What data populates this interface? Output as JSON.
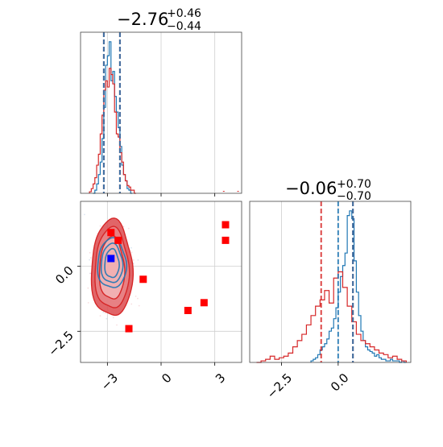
{
  "chart_data": [
    {
      "type": "histogram",
      "panel": "marginal-param-1",
      "title": {
        "median": "−2.76",
        "upper": "+0.46",
        "lower": "−0.44"
      },
      "xlim": [
        -4.5,
        4.5
      ],
      "grid": true,
      "xticks": [
        -3,
        0,
        3
      ],
      "xtick_labels_shown": false,
      "quantile_lines": [
        {
          "color": "#d62728",
          "style": "dashed",
          "x": -3.2
        },
        {
          "color": "#d62728",
          "style": "dashed",
          "x": -2.3
        },
        {
          "color": "#1f77b4",
          "style": "dashed",
          "x": -3.2
        },
        {
          "color": "#1f77b4",
          "style": "dashed",
          "x": -2.3
        }
      ],
      "series": [
        {
          "color": "#1f77b4",
          "bin_edges": [
            -3.8,
            -3.7,
            -3.6,
            -3.5,
            -3.4,
            -3.3,
            -3.2,
            -3.1,
            -3.0,
            -2.9,
            -2.8,
            -2.7,
            -2.6,
            -2.5,
            -2.4,
            -2.3,
            -2.2,
            -2.1,
            -2.0,
            -1.9,
            -1.8,
            -1.7,
            -1.6
          ],
          "counts": [
            0.0,
            0.02,
            0.06,
            0.12,
            0.2,
            0.35,
            0.55,
            0.82,
            0.88,
            0.97,
            0.72,
            0.78,
            0.62,
            0.52,
            0.42,
            0.3,
            0.18,
            0.12,
            0.08,
            0.03,
            0.02,
            0.0
          ]
        },
        {
          "color": "#d62728",
          "bin_edges": [
            -4.0,
            -3.9,
            -3.8,
            -3.7,
            -3.6,
            -3.5,
            -3.4,
            -3.3,
            -3.2,
            -3.1,
            -3.0,
            -2.9,
            -2.8,
            -2.7,
            -2.6,
            -2.5,
            -2.4,
            -2.3,
            -2.2,
            -2.1,
            -2.0,
            -1.9,
            -1.8,
            -1.7,
            -1.6,
            -1.5,
            -1.4
          ],
          "counts": [
            0.01,
            0.03,
            0.06,
            0.1,
            0.18,
            0.25,
            0.38,
            0.5,
            0.66,
            0.72,
            0.68,
            0.8,
            0.76,
            0.7,
            0.52,
            0.38,
            0.36,
            0.26,
            0.2,
            0.12,
            0.08,
            0.05,
            0.04,
            0.02,
            0.02,
            0.0
          ]
        }
      ],
      "outliers": [
        {
          "color": "#d62728",
          "x": 3.5,
          "count": 0.01
        },
        {
          "color": "#d62728",
          "x": 4.3,
          "count": 0.01
        }
      ]
    },
    {
      "type": "scatter",
      "panel": "joint",
      "xlim": [
        -4.5,
        4.5
      ],
      "ylim": [
        -3.7,
        2.5
      ],
      "grid": true,
      "xticks": [
        -3,
        0,
        3
      ],
      "yticks": [
        0.0,
        -2.5
      ],
      "xtick_labels": [
        "−3",
        "0",
        "3"
      ],
      "ytick_labels": [
        "0.0",
        "−2.5"
      ],
      "red_square_markers": [
        {
          "x": -2.8,
          "y": 1.3
        },
        {
          "x": -2.4,
          "y": 1.0
        },
        {
          "x": -1.0,
          "y": -0.5
        },
        {
          "x": -1.8,
          "y": -2.4
        },
        {
          "x": 1.5,
          "y": -1.7
        },
        {
          "x": 2.4,
          "y": -1.4
        },
        {
          "x": 3.6,
          "y": 1.6
        },
        {
          "x": 3.6,
          "y": 1.0
        }
      ],
      "blue_square_marker": {
        "x": -2.8,
        "y": 0.3
      },
      "contours": [
        {
          "color": "#d62728",
          "center": [
            -2.75,
            -0.1
          ],
          "sx": [
            0.7,
            0.95,
            1.15
          ],
          "sy": [
            1.2,
            1.55,
            1.85
          ]
        },
        {
          "color": "#1f77b4",
          "center": [
            -2.75,
            0.1
          ],
          "sx": [
            0.4,
            0.6,
            0.8
          ],
          "sy": [
            0.55,
            0.75,
            0.95
          ]
        }
      ]
    },
    {
      "type": "histogram",
      "panel": "marginal-param-2",
      "title": {
        "median": "−0.06",
        "upper": "+0.70",
        "lower": "−0.70"
      },
      "xlim": [
        -3.9,
        3.2
      ],
      "grid": true,
      "xticks": [
        -2.5,
        0.0
      ],
      "xtick_labels": [
        "−2.5",
        "0.0"
      ],
      "quantile_lines": [
        {
          "color": "#d62728",
          "style": "dashed",
          "x": -0.75
        },
        {
          "color": "#d62728",
          "style": "dashed",
          "x": 0.65
        },
        {
          "color": "#1f77b4",
          "style": "dashed",
          "x": 0.0
        },
        {
          "color": "#1f77b4",
          "style": "dashed",
          "x": 0.65
        }
      ],
      "series": [
        {
          "color": "#1f77b4",
          "bin_edges": [
            -1.2,
            -1.1,
            -1.0,
            -0.9,
            -0.8,
            -0.7,
            -0.6,
            -0.5,
            -0.4,
            -0.3,
            -0.2,
            -0.1,
            0.0,
            0.1,
            0.2,
            0.3,
            0.4,
            0.5,
            0.6,
            0.7,
            0.8,
            0.9,
            1.0,
            1.1,
            1.2,
            1.3,
            1.4,
            1.5,
            1.6,
            1.7,
            1.8,
            1.9,
            2.0,
            2.1,
            2.2,
            2.3,
            2.4,
            2.5,
            2.6,
            2.7,
            2.8,
            2.9,
            3.0
          ],
          "counts": [
            0.01,
            0.02,
            0.03,
            0.05,
            0.08,
            0.1,
            0.12,
            0.15,
            0.2,
            0.22,
            0.28,
            0.35,
            0.45,
            0.55,
            0.62,
            0.7,
            0.94,
            0.97,
            0.92,
            0.65,
            0.45,
            0.3,
            0.2,
            0.14,
            0.1,
            0.08,
            0.07,
            0.06,
            0.04,
            0.05,
            0.03,
            0.02,
            0.02,
            0.01,
            0.01,
            0.02,
            0.01,
            0.01,
            0.01,
            0.0,
            0.01,
            0.0
          ]
        },
        {
          "color": "#d62728",
          "bin_edges": [
            -3.6,
            -3.4,
            -3.2,
            -3.0,
            -2.8,
            -2.6,
            -2.4,
            -2.2,
            -2.0,
            -1.8,
            -1.6,
            -1.4,
            -1.2,
            -1.0,
            -0.8,
            -0.6,
            -0.4,
            -0.2,
            0.0,
            0.2,
            0.4,
            0.6,
            0.8,
            1.0,
            1.2,
            1.4,
            1.6,
            1.8,
            2.0,
            2.2,
            2.4,
            2.6,
            2.8,
            3.0
          ],
          "counts": [
            0.0,
            0.01,
            0.02,
            0.04,
            0.02,
            0.03,
            0.04,
            0.06,
            0.1,
            0.14,
            0.18,
            0.24,
            0.3,
            0.36,
            0.4,
            0.46,
            0.38,
            0.54,
            0.58,
            0.48,
            0.36,
            0.26,
            0.18,
            0.14,
            0.12,
            0.1,
            0.08,
            0.06,
            0.05,
            0.03,
            0.04,
            0.02,
            0.01
          ]
        }
      ]
    }
  ]
}
